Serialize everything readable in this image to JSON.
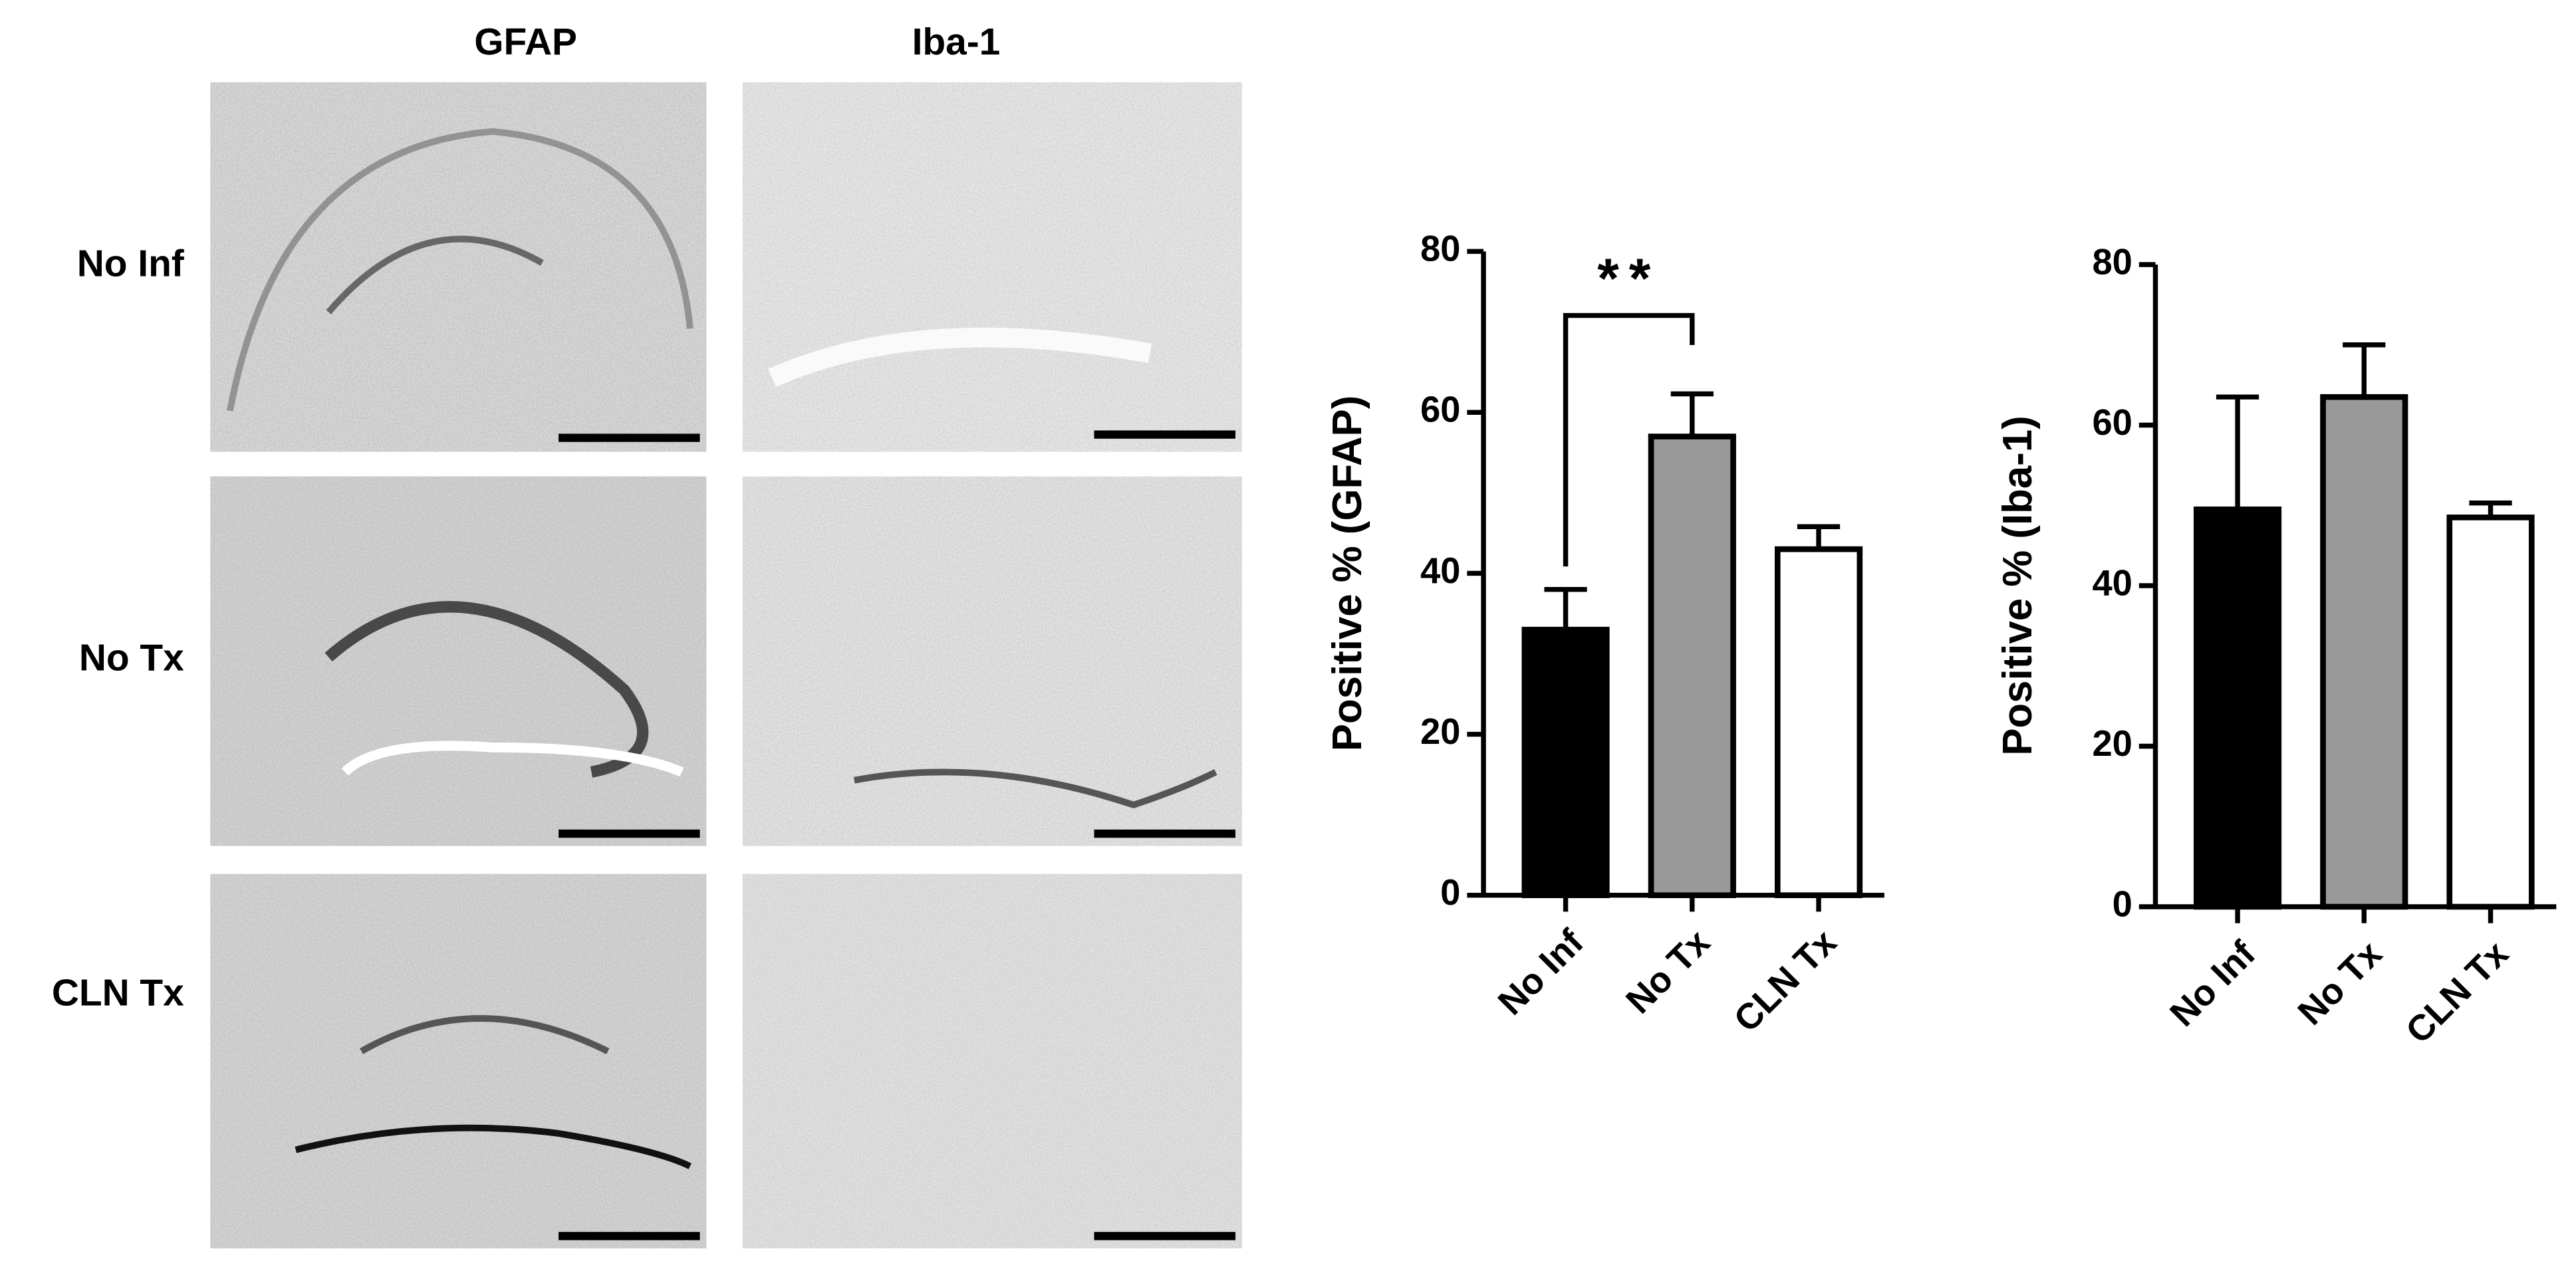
{
  "panels": {
    "columns": [
      "GFAP",
      "Iba-1"
    ],
    "rows": [
      "No Inf",
      "No Tx",
      "CLN Tx"
    ]
  },
  "chart_data": [
    {
      "type": "bar",
      "y_label": "Positive % (GFAP)",
      "categories": [
        "No Inf",
        "No Tx",
        "CLN Tx"
      ],
      "values": [
        33,
        57,
        43
      ],
      "errors": [
        5,
        5.3,
        2.8
      ],
      "colors": [
        "#000000",
        "#999999",
        "#ffffff"
      ],
      "ylim": [
        0,
        80
      ],
      "yticks": [
        0,
        20,
        40,
        60,
        80
      ],
      "annotation": "**"
    },
    {
      "type": "bar",
      "y_label": "Positive % (Iba-1)",
      "categories": [
        "No Inf",
        "No Tx",
        "CLN Tx"
      ],
      "values": [
        49.5,
        63.5,
        48.5
      ],
      "errors": [
        14,
        6.5,
        1.8
      ],
      "colors": [
        "#000000",
        "#999999",
        "#ffffff"
      ],
      "ylim": [
        0,
        80
      ],
      "yticks": [
        0,
        20,
        40,
        60,
        80
      ]
    }
  ]
}
